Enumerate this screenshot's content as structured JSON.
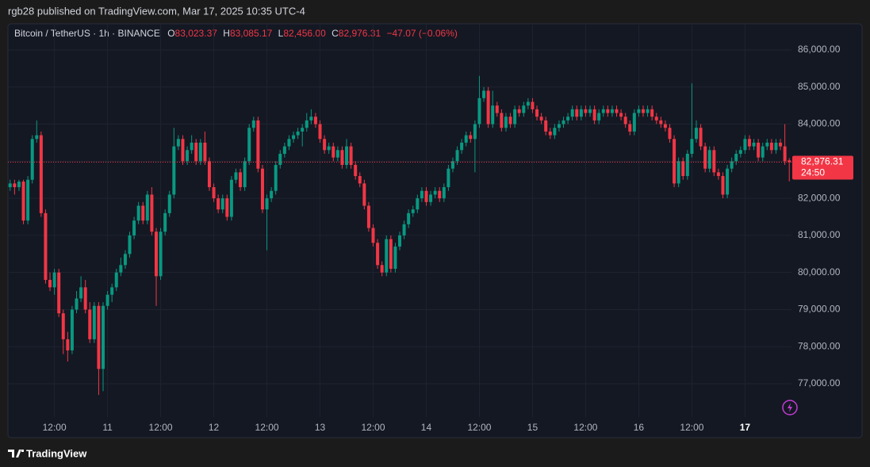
{
  "header": {
    "text": "rgb28 published on TradingView.com, Mar 17, 2025 10:35 UTC-4"
  },
  "footer": {
    "brand": "TradingView"
  },
  "chart_data": {
    "type": "candlestick",
    "title": "Bitcoin / TetherUS · 1h · BINANCE",
    "ohlc_header": [
      {
        "label": "O",
        "value": "83,023.37"
      },
      {
        "label": "H",
        "value": "83,085.17"
      },
      {
        "label": "L",
        "value": "82,456.00"
      },
      {
        "label": "C",
        "value": "82,976.31"
      }
    ],
    "change": "−47.07 (−0.06%)",
    "up_color": "#089981",
    "down_color": "#f23645",
    "grid": true,
    "ylim": [
      75547,
      86705
    ],
    "yticks": [
      {
        "value": 77000,
        "label": "77,000.00"
      },
      {
        "value": 78000,
        "label": "78,000.00"
      },
      {
        "value": 79000,
        "label": "79,000.00"
      },
      {
        "value": 80000,
        "label": "80,000.00"
      },
      {
        "value": 81000,
        "label": "81,000.00"
      },
      {
        "value": 82000,
        "label": "82,000.00"
      },
      {
        "value": 83000,
        "label": "83,000.00"
      },
      {
        "value": 84000,
        "label": "84,000.00"
      },
      {
        "value": 85000,
        "label": "85,000.00"
      },
      {
        "value": 86000,
        "label": "86,000.00"
      }
    ],
    "last_price": {
      "value": 82976.31,
      "label": "82,976.31"
    },
    "countdown": "24:50",
    "categories": [
      null,
      null,
      null,
      null,
      null,
      null,
      null,
      null,
      null,
      null,
      "12:00",
      null,
      null,
      null,
      null,
      null,
      null,
      null,
      null,
      null,
      null,
      null,
      "11",
      null,
      null,
      null,
      null,
      null,
      null,
      null,
      null,
      null,
      null,
      null,
      "12:00",
      null,
      null,
      null,
      null,
      null,
      null,
      null,
      null,
      null,
      null,
      null,
      "12",
      null,
      null,
      null,
      null,
      null,
      null,
      null,
      null,
      null,
      null,
      null,
      "12:00",
      null,
      null,
      null,
      null,
      null,
      null,
      null,
      null,
      null,
      null,
      null,
      "13",
      null,
      null,
      null,
      null,
      null,
      null,
      null,
      null,
      null,
      null,
      null,
      "12:00",
      null,
      null,
      null,
      null,
      null,
      null,
      null,
      null,
      null,
      null,
      null,
      "14",
      null,
      null,
      null,
      null,
      null,
      null,
      null,
      null,
      null,
      null,
      null,
      "12:00",
      null,
      null,
      null,
      null,
      null,
      null,
      null,
      null,
      null,
      null,
      null,
      "15",
      null,
      null,
      null,
      null,
      null,
      null,
      null,
      null,
      null,
      null,
      null,
      "12:00",
      null,
      null,
      null,
      null,
      null,
      null,
      null,
      null,
      null,
      null,
      null,
      "16",
      null,
      null,
      null,
      null,
      null,
      null,
      null,
      null,
      null,
      null,
      null,
      "12:00",
      null,
      null,
      null,
      null,
      null,
      null,
      null,
      null,
      null,
      null,
      null,
      "17",
      null,
      null,
      null,
      null,
      null,
      null,
      null,
      null,
      null,
      null
    ],
    "ohlc": [
      [
        82300,
        82500,
        82200,
        82400
      ],
      [
        82400,
        82500,
        82100,
        82300
      ],
      [
        82300,
        82500,
        82200,
        82450
      ],
      [
        82450,
        82500,
        81300,
        81400
      ],
      [
        81400,
        82600,
        81300,
        82500
      ],
      [
        82500,
        83700,
        82400,
        83600
      ],
      [
        83600,
        84100,
        83500,
        83700
      ],
      [
        83700,
        83800,
        81500,
        81600
      ],
      [
        81600,
        81700,
        79700,
        79800
      ],
      [
        79800,
        80000,
        79500,
        79600
      ],
      [
        79600,
        80100,
        79400,
        80000
      ],
      [
        80000,
        80100,
        78800,
        78900
      ],
      [
        78900,
        79000,
        77800,
        78200
      ],
      [
        78200,
        78400,
        77600,
        77900
      ],
      [
        77900,
        79100,
        77800,
        79000
      ],
      [
        79000,
        79500,
        78900,
        79300
      ],
      [
        79300,
        79900,
        79200,
        79600
      ],
      [
        79600,
        79800,
        78900,
        79000
      ],
      [
        79000,
        79200,
        78100,
        78200
      ],
      [
        78200,
        79200,
        78100,
        79100
      ],
      [
        79100,
        79200,
        76700,
        77400
      ],
      [
        77400,
        79200,
        76800,
        79100
      ],
      [
        79100,
        79500,
        79000,
        79400
      ],
      [
        79400,
        79700,
        79200,
        79600
      ],
      [
        79600,
        80100,
        79500,
        80000
      ],
      [
        80000,
        80400,
        79900,
        80200
      ],
      [
        80200,
        80600,
        80100,
        80500
      ],
      [
        80500,
        81100,
        80400,
        81000
      ],
      [
        81000,
        81500,
        80900,
        81400
      ],
      [
        81400,
        81900,
        81300,
        81800
      ],
      [
        81800,
        81900,
        81300,
        81400
      ],
      [
        81400,
        82200,
        81300,
        82100
      ],
      [
        82100,
        82300,
        81000,
        81100
      ],
      [
        81100,
        81200,
        79100,
        79900
      ],
      [
        79900,
        81200,
        79800,
        81100
      ],
      [
        81100,
        81700,
        81000,
        81600
      ],
      [
        81600,
        82200,
        81500,
        82100
      ],
      [
        82100,
        83900,
        82000,
        83400
      ],
      [
        83400,
        83700,
        83300,
        83600
      ],
      [
        83600,
        83700,
        82900,
        83000
      ],
      [
        83000,
        83400,
        82900,
        83300
      ],
      [
        83300,
        83700,
        83200,
        83500
      ],
      [
        83500,
        83600,
        82900,
        83000
      ],
      [
        83000,
        83600,
        82900,
        83500
      ],
      [
        83500,
        83800,
        82900,
        83000
      ],
      [
        83000,
        83100,
        82200,
        82300
      ],
      [
        82300,
        82400,
        81900,
        82000
      ],
      [
        82000,
        82100,
        81600,
        81700
      ],
      [
        81700,
        82100,
        81600,
        82000
      ],
      [
        82000,
        82100,
        81400,
        81500
      ],
      [
        81500,
        82600,
        81400,
        82500
      ],
      [
        82500,
        82800,
        82400,
        82700
      ],
      [
        82700,
        82800,
        82200,
        82300
      ],
      [
        82300,
        83100,
        82200,
        83000
      ],
      [
        83000,
        84000,
        82900,
        83900
      ],
      [
        83900,
        84200,
        83800,
        84100
      ],
      [
        84100,
        84200,
        82700,
        82800
      ],
      [
        82800,
        82900,
        81600,
        81700
      ],
      [
        81700,
        82100,
        80600,
        82000
      ],
      [
        82000,
        82300,
        81900,
        82200
      ],
      [
        82200,
        83000,
        82100,
        82900
      ],
      [
        82900,
        83300,
        82800,
        83200
      ],
      [
        83200,
        83500,
        83100,
        83400
      ],
      [
        83400,
        83700,
        83300,
        83600
      ],
      [
        83600,
        83800,
        83500,
        83700
      ],
      [
        83700,
        83900,
        83600,
        83800
      ],
      [
        83800,
        84000,
        83400,
        83900
      ],
      [
        83900,
        84300,
        83800,
        84100
      ],
      [
        84100,
        84400,
        84000,
        84200
      ],
      [
        84200,
        84300,
        83900,
        84000
      ],
      [
        84000,
        84100,
        83500,
        83600
      ],
      [
        83600,
        83700,
        83200,
        83300
      ],
      [
        83300,
        83500,
        83200,
        83400
      ],
      [
        83400,
        83500,
        83000,
        83100
      ],
      [
        83100,
        83400,
        83000,
        83300
      ],
      [
        83300,
        83400,
        82800,
        82900
      ],
      [
        82900,
        83600,
        82800,
        83400
      ],
      [
        83400,
        83500,
        82800,
        82900
      ],
      [
        82900,
        83000,
        82500,
        82600
      ],
      [
        82600,
        82700,
        82300,
        82400
      ],
      [
        82400,
        82500,
        81700,
        81800
      ],
      [
        81800,
        81900,
        81100,
        81200
      ],
      [
        81200,
        81300,
        80700,
        80800
      ],
      [
        80800,
        80900,
        80100,
        80200
      ],
      [
        80200,
        80300,
        79900,
        80000
      ],
      [
        80000,
        81000,
        79900,
        80900
      ],
      [
        80900,
        81000,
        80000,
        80100
      ],
      [
        80100,
        80800,
        80000,
        80700
      ],
      [
        80700,
        81100,
        80600,
        81000
      ],
      [
        81000,
        81400,
        80900,
        81300
      ],
      [
        81300,
        81700,
        81200,
        81600
      ],
      [
        81600,
        81800,
        81500,
        81700
      ],
      [
        81700,
        82100,
        81600,
        82000
      ],
      [
        82000,
        82300,
        81900,
        82200
      ],
      [
        82200,
        82300,
        81800,
        81900
      ],
      [
        81900,
        82200,
        81800,
        82100
      ],
      [
        82100,
        82300,
        82000,
        82200
      ],
      [
        82200,
        82300,
        81900,
        82000
      ],
      [
        82000,
        82400,
        81900,
        82300
      ],
      [
        82300,
        82900,
        82200,
        82800
      ],
      [
        82800,
        83100,
        82700,
        83000
      ],
      [
        83000,
        83400,
        82900,
        83300
      ],
      [
        83300,
        83600,
        83200,
        83500
      ],
      [
        83500,
        83800,
        83400,
        83700
      ],
      [
        83700,
        83800,
        83500,
        83600
      ],
      [
        83600,
        84100,
        82700,
        84000
      ],
      [
        84000,
        85300,
        83900,
        84700
      ],
      [
        84700,
        85000,
        84600,
        84900
      ],
      [
        84900,
        85000,
        83900,
        84000
      ],
      [
        84000,
        84900,
        83900,
        84500
      ],
      [
        84500,
        84600,
        84200,
        84300
      ],
      [
        84300,
        84400,
        83800,
        83900
      ],
      [
        83900,
        84300,
        83800,
        84200
      ],
      [
        84200,
        84300,
        83900,
        84000
      ],
      [
        84000,
        84500,
        83900,
        84400
      ],
      [
        84400,
        84500,
        84200,
        84300
      ],
      [
        84300,
        84600,
        84200,
        84500
      ],
      [
        84500,
        84700,
        84400,
        84600
      ],
      [
        84600,
        84700,
        84300,
        84400
      ],
      [
        84400,
        84500,
        84100,
        84200
      ],
      [
        84200,
        84300,
        84000,
        84100
      ],
      [
        84100,
        84200,
        83700,
        83800
      ],
      [
        83800,
        83900,
        83600,
        83700
      ],
      [
        83700,
        84000,
        83600,
        83900
      ],
      [
        83900,
        84100,
        83800,
        84000
      ],
      [
        84000,
        84200,
        83900,
        84100
      ],
      [
        84100,
        84300,
        84000,
        84200
      ],
      [
        84200,
        84500,
        84100,
        84400
      ],
      [
        84400,
        84500,
        84100,
        84200
      ],
      [
        84200,
        84500,
        84100,
        84400
      ],
      [
        84400,
        84500,
        84200,
        84300
      ],
      [
        84300,
        84500,
        84200,
        84400
      ],
      [
        84400,
        84500,
        84000,
        84100
      ],
      [
        84100,
        84400,
        84000,
        84300
      ],
      [
        84300,
        84500,
        84200,
        84400
      ],
      [
        84400,
        84500,
        84200,
        84300
      ],
      [
        84300,
        84500,
        84200,
        84400
      ],
      [
        84400,
        84500,
        84200,
        84300
      ],
      [
        84300,
        84400,
        84100,
        84200
      ],
      [
        84200,
        84300,
        83900,
        84000
      ],
      [
        84000,
        84100,
        83700,
        83800
      ],
      [
        83800,
        84400,
        83700,
        84300
      ],
      [
        84300,
        84500,
        84200,
        84400
      ],
      [
        84400,
        84500,
        84200,
        84300
      ],
      [
        84300,
        84500,
        84200,
        84400
      ],
      [
        84400,
        84500,
        84100,
        84200
      ],
      [
        84200,
        84300,
        84000,
        84100
      ],
      [
        84100,
        84200,
        83900,
        84000
      ],
      [
        84000,
        84100,
        83800,
        83900
      ],
      [
        83900,
        84000,
        83500,
        83600
      ],
      [
        83600,
        83700,
        82300,
        82400
      ],
      [
        82400,
        83100,
        82300,
        83000
      ],
      [
        83000,
        83100,
        82500,
        82600
      ],
      [
        82600,
        83300,
        82500,
        83200
      ],
      [
        83200,
        85100,
        83100,
        83600
      ],
      [
        83600,
        84100,
        83500,
        83900
      ],
      [
        83900,
        84000,
        83300,
        83400
      ],
      [
        83400,
        83500,
        82700,
        82800
      ],
      [
        82800,
        83400,
        82700,
        83300
      ],
      [
        83300,
        83400,
        82600,
        82700
      ],
      [
        82700,
        82800,
        82500,
        82600
      ],
      [
        82600,
        82700,
        82000,
        82100
      ],
      [
        82100,
        82900,
        82000,
        82800
      ],
      [
        82800,
        83100,
        82700,
        83000
      ],
      [
        83000,
        83300,
        82900,
        83200
      ],
      [
        83200,
        83400,
        83100,
        83300
      ],
      [
        83300,
        83700,
        83200,
        83600
      ],
      [
        83600,
        83700,
        83300,
        83400
      ],
      [
        83400,
        83600,
        83300,
        83500
      ],
      [
        83500,
        83600,
        83000,
        83100
      ],
      [
        83100,
        83500,
        83000,
        83400
      ],
      [
        83400,
        83600,
        83300,
        83500
      ],
      [
        83500,
        83600,
        83200,
        83300
      ],
      [
        83300,
        83600,
        83200,
        83500
      ],
      [
        83500,
        83600,
        83300,
        83400
      ],
      [
        83400,
        84000,
        82900,
        83000
      ],
      [
        83023.37,
        83085.17,
        82456,
        82976.31
      ]
    ]
  }
}
